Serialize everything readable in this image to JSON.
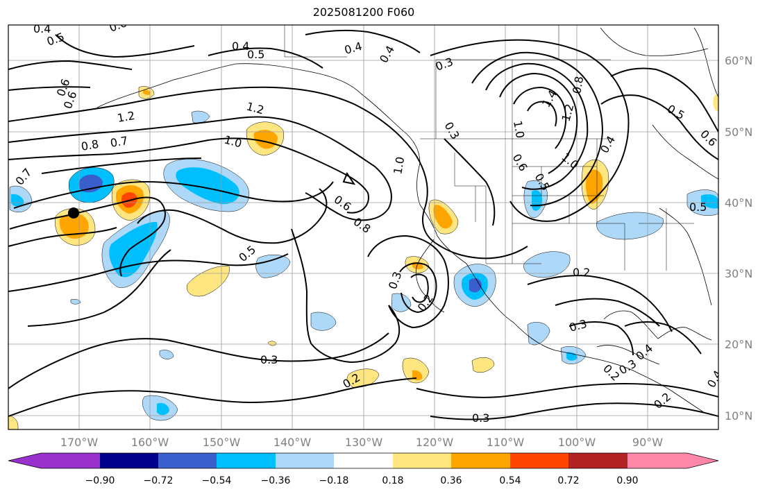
{
  "title": "2025081200 F060",
  "map": {
    "lon_range": [
      -180,
      -80
    ],
    "lat_range": [
      8,
      65
    ],
    "grid": true,
    "lon_ticks": [
      "170°W",
      "160°W",
      "150°W",
      "140°W",
      "130°W",
      "120°W",
      "110°W",
      "100°W",
      "90°W"
    ],
    "lat_ticks": [
      "10°N",
      "20°N",
      "30°N",
      "40°N",
      "50°N",
      "60°N"
    ],
    "marker": "black-dot",
    "contour_labels": [
      "0.4",
      "0.5",
      "0.4",
      "0.4",
      "0.3",
      "0.6",
      "0.6",
      "1.2",
      "1.2",
      "1.0",
      "0.8",
      "0.7",
      "0.7",
      "0.6",
      "0.8",
      "0.5",
      "0.3",
      "0.2",
      "0.3",
      "0.2",
      "0.3",
      "1.4",
      "1.2",
      "0.8",
      "1.0",
      "1.0",
      "0.6",
      "0.5",
      "0.4",
      "0.5",
      "0.6",
      "0.5",
      "0.2",
      "0.3",
      "0.2",
      "0.3",
      "0.2",
      "0.4",
      "0.3",
      "0.6",
      "0.5",
      "0.4",
      "1.0",
      "0.4"
    ]
  },
  "colorbar": {
    "labels": [
      "−0.90",
      "−0.72",
      "−0.54",
      "−0.36",
      "−0.18",
      "0.18",
      "0.36",
      "0.54",
      "0.72",
      "0.90"
    ],
    "colors": [
      "#9932cc",
      "#00008b",
      "#3a5fcd",
      "#00bfff",
      "#add8f7",
      "#ffffff",
      "#ffe680",
      "#ffa500",
      "#ff4500",
      "#b22222",
      "#ff88aa"
    ]
  }
}
